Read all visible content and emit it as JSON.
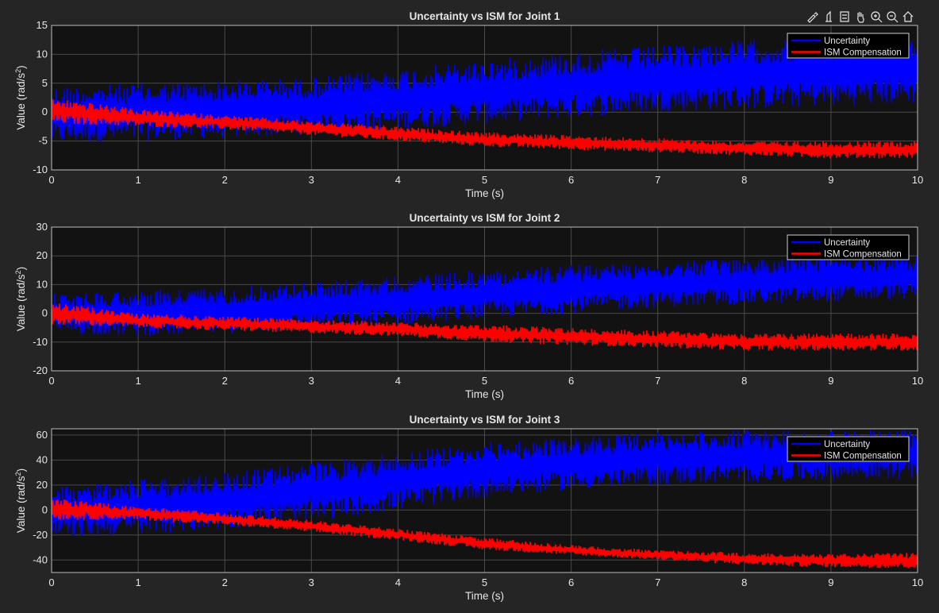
{
  "figure": {
    "background": "#252525",
    "axes_background": "#121212",
    "text_color": "#e6e6e6",
    "grid_color": "#4a4a4a"
  },
  "toolbar": {
    "icons": [
      "brush-icon",
      "datatip-icon",
      "legend-toggle-icon",
      "pan-hand-icon",
      "zoom-in-icon",
      "zoom-out-icon",
      "home-icon"
    ]
  },
  "chart_data": [
    {
      "type": "line",
      "title": "Uncertainty vs ISM for Joint 1",
      "xlabel": "Time (s)",
      "ylabel_prefix": "Value  (rad/s",
      "ylabel_sup": "2",
      "ylabel_suffix": ")",
      "xlim": [
        0,
        10
      ],
      "ylim": [
        -10,
        15
      ],
      "xticks": [
        0,
        1,
        2,
        3,
        4,
        5,
        6,
        7,
        8,
        9,
        10
      ],
      "yticks": [
        -10,
        -5,
        0,
        5,
        10,
        15
      ],
      "grid": true,
      "legend_position": "top-right",
      "series": [
        {
          "name": "Uncertainty",
          "color": "#0000ff",
          "x": [
            0,
            1,
            2,
            3,
            4,
            5,
            6,
            7,
            8,
            9,
            10
          ],
          "lower": [
            -5.5,
            -5,
            -4.5,
            -4,
            -3,
            -2,
            -1,
            0,
            0.5,
            1,
            1.5
          ],
          "upper": [
            4.5,
            5,
            5.5,
            6,
            7.5,
            9,
            10.5,
            11.5,
            12.5,
            13,
            13.5
          ]
        },
        {
          "name": "ISM Compensation",
          "color": "#ff0000",
          "x": [
            0,
            1,
            2,
            3,
            4,
            5,
            6,
            7,
            8,
            9,
            10
          ],
          "lower": [
            -2,
            -2.5,
            -3,
            -4,
            -5,
            -6,
            -6.5,
            -7,
            -7.5,
            -8,
            -8
          ],
          "upper": [
            2.5,
            0.5,
            -0.5,
            -1.5,
            -2.5,
            -3.5,
            -4,
            -4.5,
            -5,
            -5,
            -5
          ]
        }
      ]
    },
    {
      "type": "line",
      "title": "Uncertainty vs ISM for Joint 2",
      "xlabel": "Time (s)",
      "ylabel_prefix": "Value  (rad/s",
      "ylabel_sup": "2",
      "ylabel_suffix": ")",
      "xlim": [
        0,
        10
      ],
      "ylim": [
        -20,
        30
      ],
      "xticks": [
        0,
        1,
        2,
        3,
        4,
        5,
        6,
        7,
        8,
        9,
        10
      ],
      "yticks": [
        -20,
        -10,
        0,
        10,
        20,
        30
      ],
      "grid": true,
      "legend_position": "top-right",
      "series": [
        {
          "name": "Uncertainty",
          "color": "#0000ff",
          "x": [
            0,
            1,
            2,
            3,
            4,
            5,
            6,
            7,
            8,
            9,
            10
          ],
          "lower": [
            -7,
            -8,
            -7,
            -6,
            -4,
            -2,
            0,
            2,
            3,
            4,
            5
          ],
          "upper": [
            7,
            8,
            9,
            11,
            13,
            15,
            17,
            18,
            19,
            20,
            20
          ]
        },
        {
          "name": "ISM Compensation",
          "color": "#ff0000",
          "x": [
            0,
            1,
            2,
            3,
            4,
            5,
            6,
            7,
            8,
            9,
            10
          ],
          "lower": [
            -4,
            -5,
            -6,
            -7,
            -8,
            -10,
            -11,
            -12,
            -13,
            -13,
            -13
          ],
          "upper": [
            4,
            0,
            -1,
            -2,
            -3,
            -4,
            -5,
            -6,
            -7,
            -7,
            -7
          ]
        }
      ]
    },
    {
      "type": "line",
      "title": "Uncertainty vs ISM for Joint 3",
      "xlabel": "Time (s)",
      "ylabel_prefix": "Value  (rad/s",
      "ylabel_sup": "2",
      "ylabel_suffix": ")",
      "xlim": [
        0,
        10
      ],
      "ylim": [
        -50,
        65
      ],
      "xticks": [
        0,
        1,
        2,
        3,
        4,
        5,
        6,
        7,
        8,
        9,
        10
      ],
      "yticks": [
        -40,
        -20,
        0,
        20,
        40,
        60
      ],
      "grid": true,
      "legend_position": "top-right",
      "series": [
        {
          "name": "Uncertainty",
          "color": "#0000ff",
          "x": [
            0,
            1,
            2,
            3,
            4,
            5,
            6,
            7,
            8,
            9,
            10
          ],
          "lower": [
            -22,
            -20,
            -15,
            -10,
            0,
            10,
            16,
            20,
            22,
            24,
            25
          ],
          "upper": [
            18,
            25,
            30,
            38,
            46,
            54,
            58,
            62,
            64,
            64,
            64
          ]
        },
        {
          "name": "ISM Compensation",
          "color": "#ff0000",
          "x": [
            0,
            1,
            2,
            3,
            4,
            5,
            6,
            7,
            8,
            9,
            10
          ],
          "lower": [
            -8,
            -8,
            -12,
            -18,
            -24,
            -32,
            -36,
            -40,
            -44,
            -46,
            -47
          ],
          "upper": [
            10,
            3,
            -2,
            -8,
            -15,
            -22,
            -28,
            -32,
            -34,
            -35,
            -34
          ]
        }
      ]
    }
  ]
}
